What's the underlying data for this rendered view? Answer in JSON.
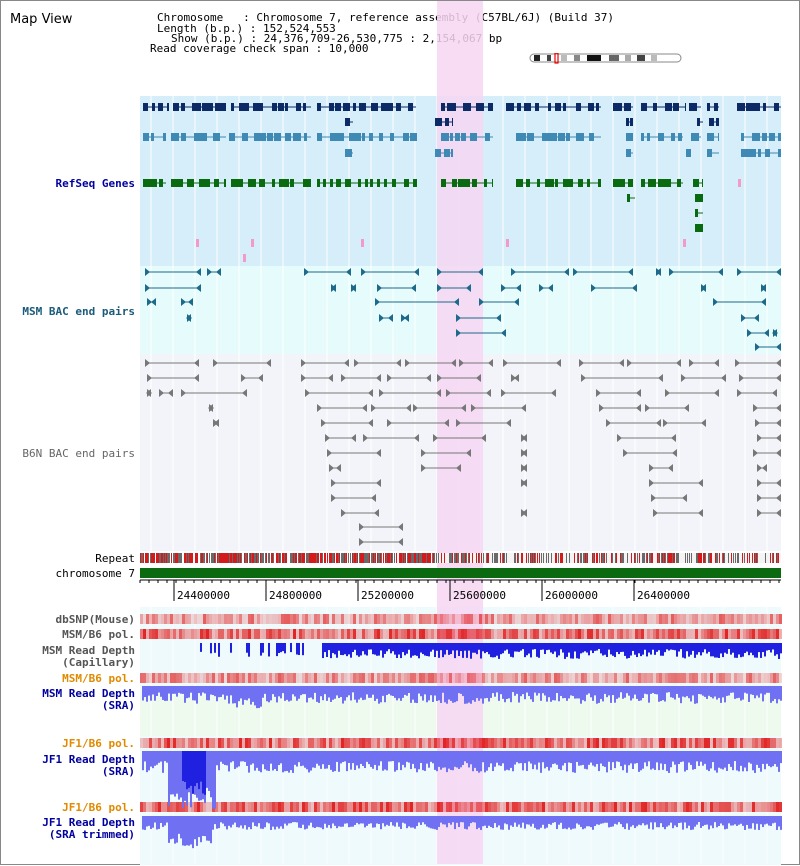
{
  "title": "Map View",
  "header": {
    "chromosome": "Chromosome   : Chromosome 7, reference assembly (C57BL/6J) (Build 37)",
    "length": "Length (b.p.) : 152,524,553",
    "show": "Show (b.p.) : 24,376,709-26,530,775 : 2,154,067 bp",
    "coverage": "Read coverage check span : 10,000"
  },
  "tracks": {
    "refseq": "RefSeq Genes",
    "msm_bac": "MSM BAC end pairs",
    "b6n_bac": "B6N BAC end pairs",
    "repeat": "Repeat",
    "chromosome": "chromosome 7",
    "dbsnp": "dbSNP(Mouse)",
    "msm_pol_1": "MSM/B6 pol.",
    "msm_depth_cap_1": "MSM Read Depth",
    "msm_depth_cap_2": "(Capillary)",
    "msm_pol_2": "MSM/B6 pol.",
    "msm_depth_sra_1": "MSM Read Depth",
    "msm_depth_sra_2": "(SRA)",
    "jf1_pol_1": "JF1/B6 pol.",
    "jf1_depth_1": "JF1 Read Depth",
    "jf1_depth_2": "(SRA)",
    "jf1_pol_2": "JF1/B6 pol.",
    "jf1_trim_1": "JF1 Read Depth",
    "jf1_trim_2": "(SRA trimmed)"
  },
  "axis_ticks": [
    "24400000",
    "24800000",
    "25200000",
    "25600000",
    "26000000",
    "26400000"
  ],
  "colors": {
    "refseq_bg": "#d6eefa",
    "bac_bg": "#e6fbfb",
    "b6n_bg": "#f2f4fa",
    "highlight": "#f6d6f2",
    "gene_dark": "#0c2a66",
    "gene_mid": "#3e8ab4",
    "gene_green": "#0a6a10",
    "msm_bac": "#1e6a8a",
    "b6n_bac": "#777777",
    "depth_blue": "#2020e0",
    "depth_light": "#7070f2",
    "pol_red": "#e01818",
    "label_blue": "#0000a0",
    "label_orange": "#e08a00",
    "label_teal": "#1a5a7a"
  }
}
